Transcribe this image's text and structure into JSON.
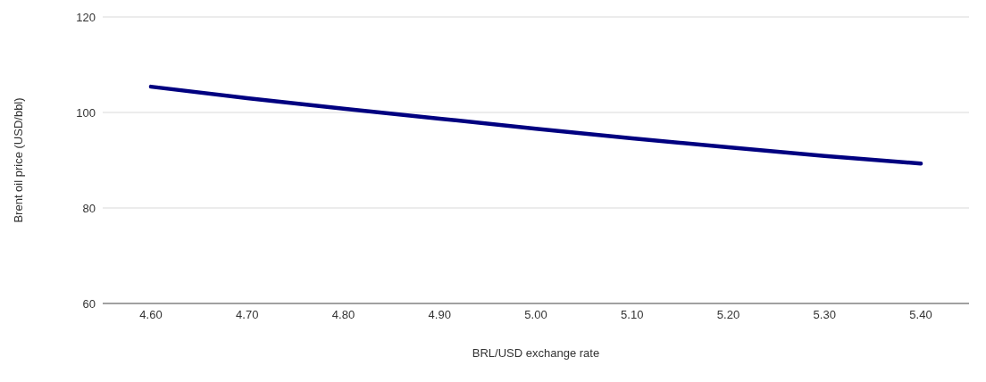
{
  "chart_data": {
    "type": "line",
    "xlabel": "BRL/USD exchange rate",
    "ylabel": "Brent oil price (USD/bbl)",
    "categories": [
      "4.60",
      "4.70",
      "4.80",
      "4.90",
      "5.00",
      "5.10",
      "5.20",
      "5.30",
      "5.40"
    ],
    "series": [
      {
        "color": "#000080",
        "values": [
          105.4,
          103,
          100.8,
          98.7,
          96.6,
          94.6,
          92.7,
          90.9,
          89.3
        ]
      }
    ],
    "ylim": [
      60,
      120
    ],
    "yticks": [
      60,
      80,
      100,
      120
    ],
    "grid": "y",
    "legend": false,
    "marker": "none",
    "line_style": "solid"
  }
}
